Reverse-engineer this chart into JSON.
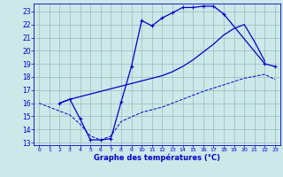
{
  "title": "Graphe des températures (°C)",
  "bg_color": "#cce8e8",
  "line_color": "#0000cc",
  "grid_color": "#99bbbb",
  "xlim": [
    -0.5,
    23.5
  ],
  "ylim": [
    12.8,
    23.6
  ],
  "xticks": [
    0,
    1,
    2,
    3,
    4,
    5,
    6,
    7,
    8,
    9,
    10,
    11,
    12,
    13,
    14,
    15,
    16,
    17,
    18,
    19,
    20,
    21,
    22,
    23
  ],
  "yticks": [
    13,
    14,
    15,
    16,
    17,
    18,
    19,
    20,
    21,
    22,
    23
  ],
  "line1_x": [
    2,
    3,
    4,
    5,
    6,
    7,
    8,
    9,
    10,
    11,
    12,
    13,
    14,
    15,
    16,
    17,
    18,
    22,
    23
  ],
  "line1_y": [
    16.0,
    16.3,
    14.8,
    13.2,
    13.2,
    13.3,
    16.1,
    18.8,
    22.3,
    21.9,
    22.5,
    22.9,
    23.3,
    23.3,
    23.4,
    23.4,
    22.8,
    19.0,
    18.8
  ],
  "line2_x": [
    2,
    3,
    4,
    5,
    6,
    7,
    8,
    9,
    10,
    11,
    12,
    13,
    14,
    15,
    16,
    17,
    18,
    19,
    20,
    21,
    22
  ],
  "line2_y": [
    16.0,
    16.3,
    16.5,
    16.7,
    16.9,
    17.1,
    17.3,
    17.5,
    17.7,
    17.9,
    18.1,
    18.4,
    18.8,
    19.3,
    19.9,
    20.5,
    21.2,
    21.7,
    22.0,
    20.7,
    19.2
  ],
  "line3_x": [
    0,
    3,
    4,
    5,
    6,
    7,
    8,
    10,
    12,
    14,
    16,
    18,
    20,
    22,
    23
  ],
  "line3_y": [
    16.0,
    15.1,
    14.4,
    13.5,
    13.2,
    13.5,
    14.6,
    15.3,
    15.7,
    16.3,
    16.9,
    17.4,
    17.9,
    18.2,
    17.8
  ]
}
